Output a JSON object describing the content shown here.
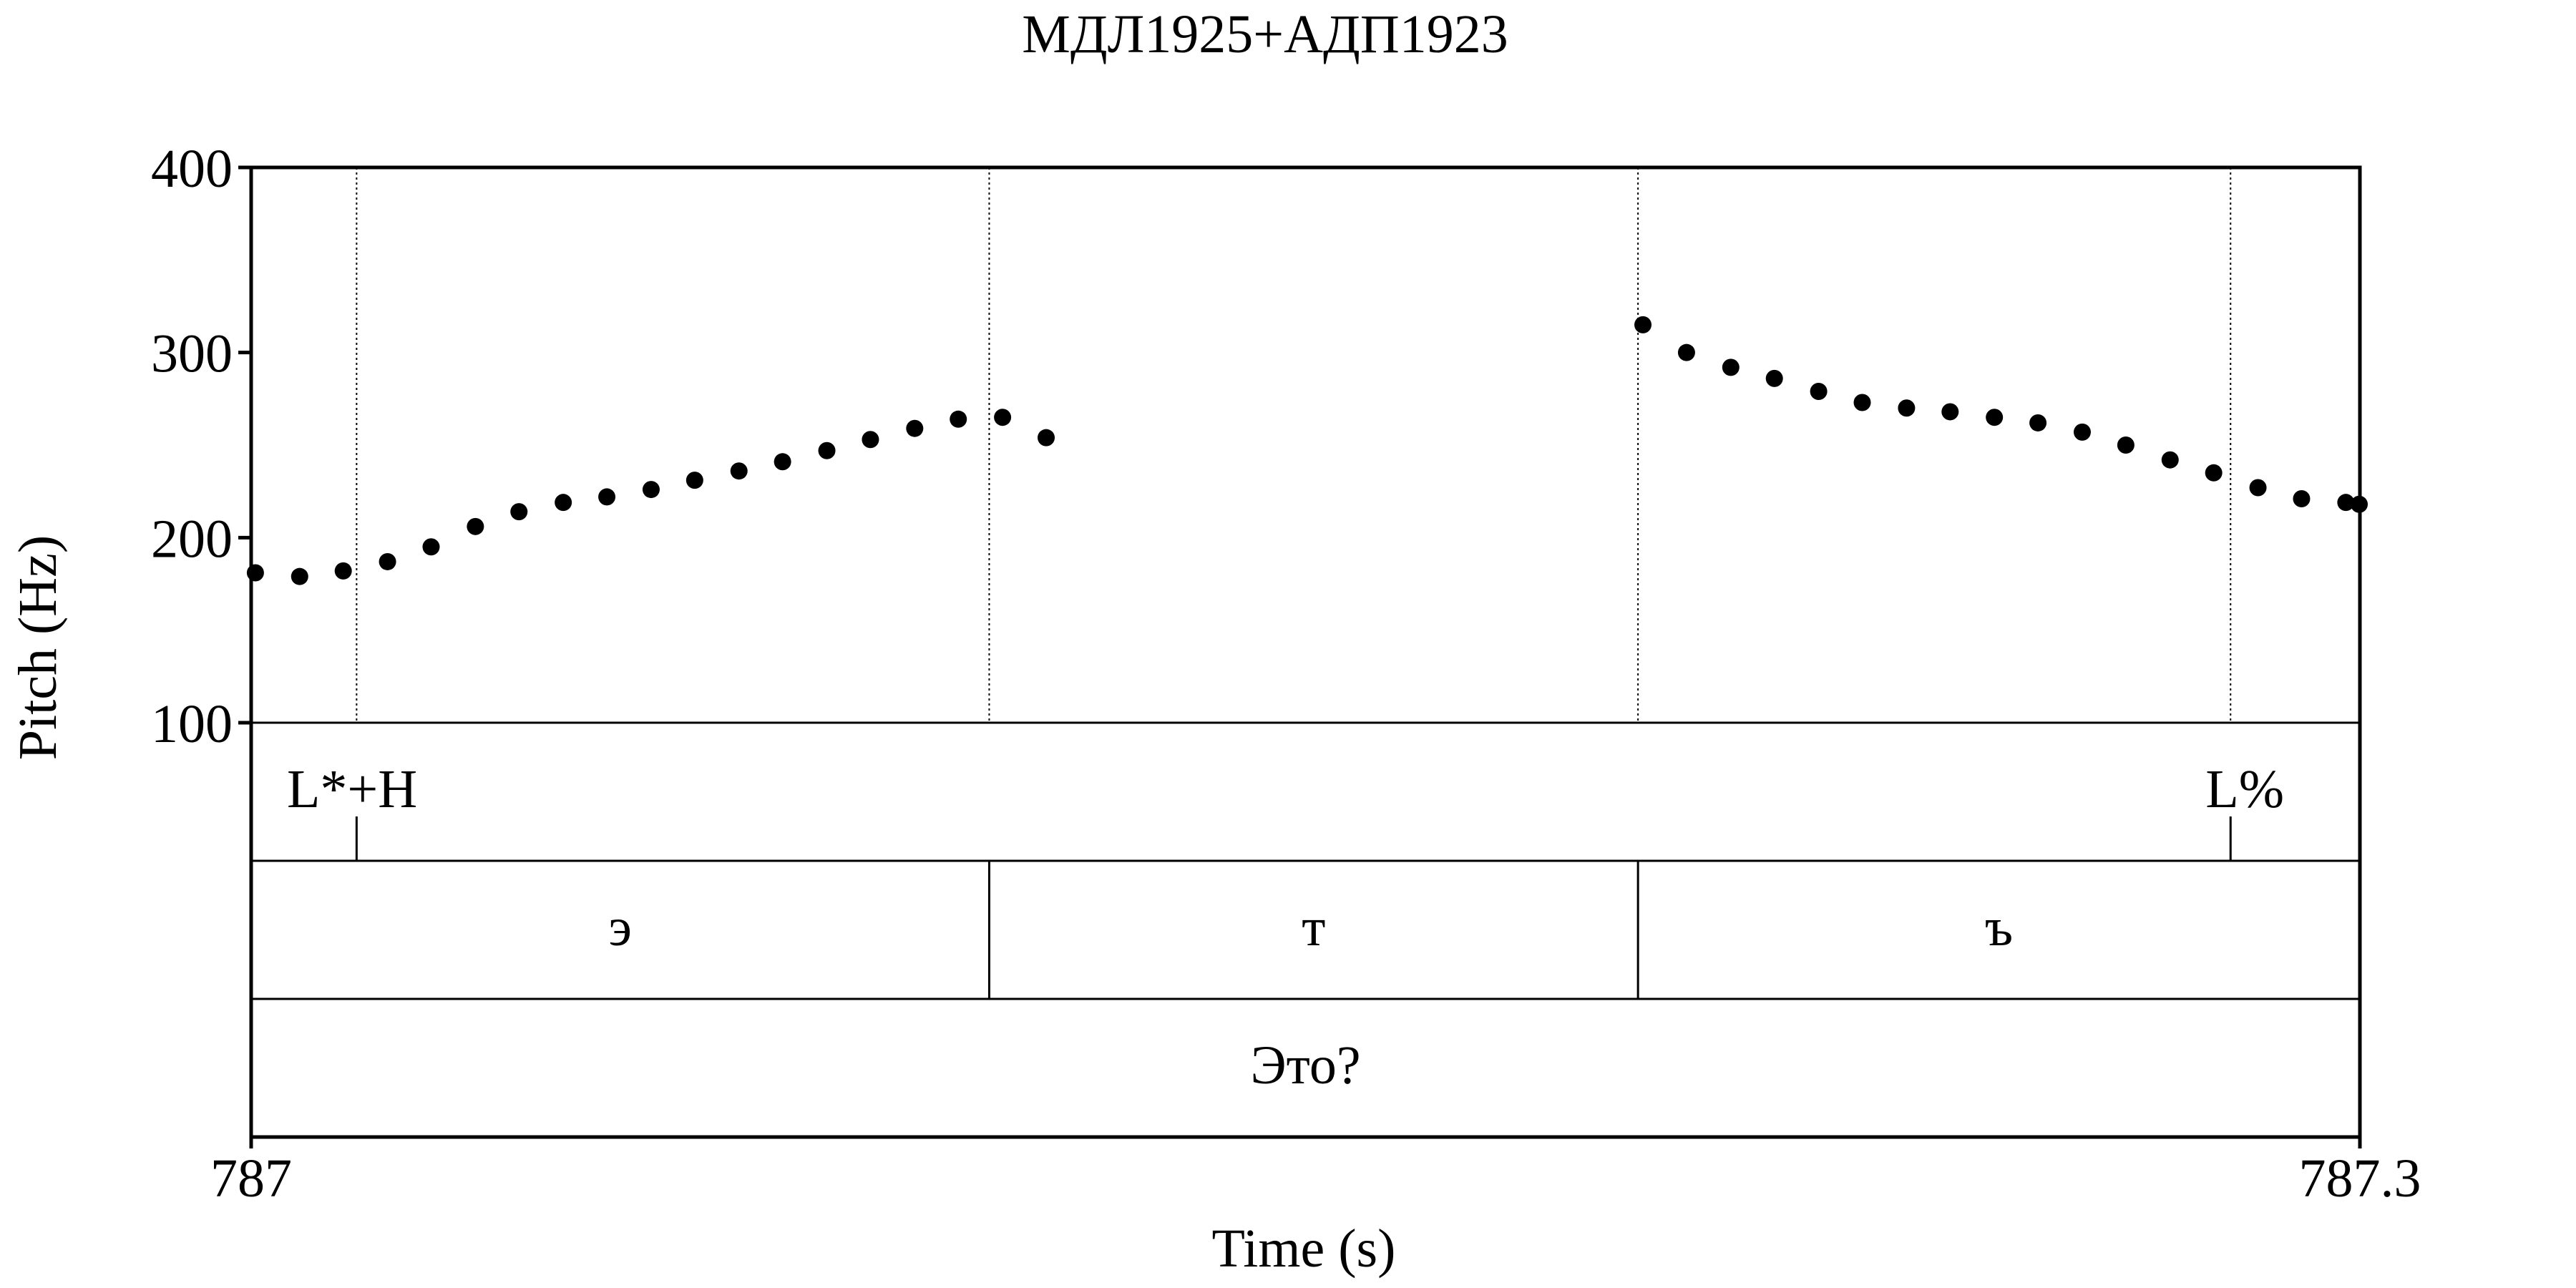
{
  "chart_data": {
    "type": "scatter",
    "title": "МДЛ1925+АДП1923",
    "xlabel": "Time (s)",
    "ylabel": "Pitch (Hz)",
    "xlim": [
      787,
      787.3
    ],
    "ylim": [
      100,
      400
    ],
    "x_ticks": [
      "787",
      "787.3"
    ],
    "y_ticks": [
      {
        "value": 100,
        "label": "100"
      },
      {
        "value": 200,
        "label": "200"
      },
      {
        "value": 300,
        "label": "300"
      },
      {
        "value": 400,
        "label": "400"
      }
    ],
    "series": [
      {
        "name": "pitch",
        "x": [
          787.0006,
          787.0069,
          787.0131,
          787.0194,
          787.0256,
          787.0319,
          787.0381,
          787.0444,
          787.0506,
          787.0569,
          787.0631,
          787.0694,
          787.0756,
          787.0819,
          787.0881,
          787.0944,
          787.1006,
          787.1069,
          787.1131,
          787.198,
          787.2042,
          787.2105,
          787.2167,
          787.223,
          787.2292,
          787.2355,
          787.2417,
          787.248,
          787.2542,
          787.2605,
          787.2667,
          787.273,
          787.2792,
          787.2855,
          787.2917,
          787.298,
          787.2999
        ],
        "y": [
          181,
          179,
          182,
          187,
          195,
          206,
          214,
          219,
          222,
          226,
          231,
          236,
          241,
          247,
          253,
          259,
          264,
          265,
          254,
          315,
          300,
          292,
          286,
          279,
          273,
          270,
          268,
          265,
          262,
          257,
          250,
          242,
          235,
          227,
          221,
          219,
          218
        ]
      }
    ],
    "tiers": [
      {
        "name": "tones",
        "type": "points",
        "points": [
          {
            "time": 787.015,
            "label": "L*+H"
          },
          {
            "time": 787.2816,
            "label": "L%"
          }
        ]
      },
      {
        "name": "phones",
        "type": "intervals",
        "intervals": [
          {
            "start": 787.0,
            "end": 787.105,
            "label": "э"
          },
          {
            "start": 787.105,
            "end": 787.1973,
            "label": "т"
          },
          {
            "start": 787.1973,
            "end": 787.3,
            "label": "ъ"
          }
        ]
      },
      {
        "name": "words",
        "type": "intervals",
        "intervals": [
          {
            "start": 787.0,
            "end": 787.3,
            "label": "Это?"
          }
        ]
      }
    ]
  }
}
